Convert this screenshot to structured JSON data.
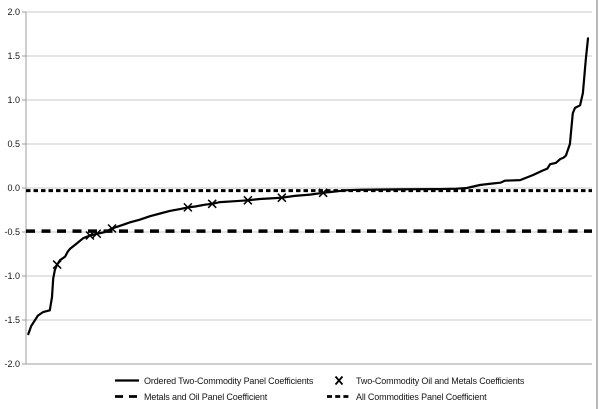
{
  "figure": {
    "background": "#ffffff",
    "right_border_color": "#b9b9b9"
  },
  "axis": {
    "ytick_labels": [
      "2.0",
      "1.5",
      "1.0",
      "0.5",
      "0.0",
      "-0.5",
      "-1.0",
      "-1.5",
      "-2.0"
    ],
    "grid_color": "#c9c9c9",
    "axis_color": "#9e9e9e",
    "label_color": "#151515"
  },
  "chart_data": {
    "type": "line",
    "title": "",
    "xlabel": "",
    "ylabel": "",
    "x_axis_note": "ordered rank of coefficients (no tick labels shown)",
    "ylim": [
      -2.0,
      2.0
    ],
    "yticks": [
      2.0,
      1.5,
      1.0,
      0.5,
      0.0,
      -0.5,
      -1.0,
      -1.5,
      -2.0
    ],
    "grid": "horizontal",
    "legend_position": "bottom",
    "series": [
      {
        "name": "Ordered Two-Commodity Panel Coefficients",
        "type": "line",
        "style": "solid",
        "color": "#000000",
        "points": [
          [
            0.004,
            -1.66
          ],
          [
            0.009,
            -1.57
          ],
          [
            0.014,
            -1.52
          ],
          [
            0.021,
            -1.45
          ],
          [
            0.03,
            -1.41
          ],
          [
            0.042,
            -1.39
          ],
          [
            0.046,
            -1.24
          ],
          [
            0.048,
            -1.03
          ],
          [
            0.051,
            -0.93
          ],
          [
            0.055,
            -0.87
          ],
          [
            0.06,
            -0.82
          ],
          [
            0.069,
            -0.78
          ],
          [
            0.074,
            -0.72
          ],
          [
            0.078,
            -0.69
          ],
          [
            0.09,
            -0.63
          ],
          [
            0.101,
            -0.57
          ],
          [
            0.113,
            -0.54
          ],
          [
            0.125,
            -0.52
          ],
          [
            0.14,
            -0.5
          ],
          [
            0.152,
            -0.46
          ],
          [
            0.166,
            -0.43
          ],
          [
            0.184,
            -0.39
          ],
          [
            0.201,
            -0.36
          ],
          [
            0.219,
            -0.32
          ],
          [
            0.237,
            -0.29
          ],
          [
            0.254,
            -0.26
          ],
          [
            0.272,
            -0.24
          ],
          [
            0.286,
            -0.22
          ],
          [
            0.299,
            -0.21
          ],
          [
            0.316,
            -0.19
          ],
          [
            0.329,
            -0.18
          ],
          [
            0.343,
            -0.16
          ],
          [
            0.369,
            -0.15
          ],
          [
            0.392,
            -0.14
          ],
          [
            0.413,
            -0.125
          ],
          [
            0.44,
            -0.115
          ],
          [
            0.452,
            -0.11
          ],
          [
            0.475,
            -0.09
          ],
          [
            0.502,
            -0.075
          ],
          [
            0.525,
            -0.055
          ],
          [
            0.546,
            -0.04
          ],
          [
            0.567,
            -0.025
          ],
          [
            0.59,
            -0.02
          ],
          [
            0.625,
            -0.018
          ],
          [
            0.661,
            -0.016
          ],
          [
            0.696,
            -0.014
          ],
          [
            0.731,
            -0.012
          ],
          [
            0.76,
            -0.008
          ],
          [
            0.779,
            0.0
          ],
          [
            0.802,
            0.034
          ],
          [
            0.822,
            0.05
          ],
          [
            0.838,
            0.06
          ],
          [
            0.846,
            0.083
          ],
          [
            0.873,
            0.09
          ],
          [
            0.896,
            0.148
          ],
          [
            0.912,
            0.195
          ],
          [
            0.921,
            0.22
          ],
          [
            0.926,
            0.27
          ],
          [
            0.936,
            0.285
          ],
          [
            0.944,
            0.33
          ],
          [
            0.95,
            0.345
          ],
          [
            0.954,
            0.37
          ],
          [
            0.961,
            0.5
          ],
          [
            0.966,
            0.85
          ],
          [
            0.97,
            0.91
          ],
          [
            0.979,
            0.94
          ],
          [
            0.984,
            1.08
          ],
          [
            0.989,
            1.46
          ],
          [
            0.993,
            1.7
          ]
        ]
      },
      {
        "name": "Two-Commodity Oil and Metals Coefficients",
        "type": "scatter",
        "marker": "x",
        "color": "#000000",
        "points": [
          [
            0.055,
            -0.87
          ],
          [
            0.113,
            -0.54
          ],
          [
            0.125,
            -0.52
          ],
          [
            0.152,
            -0.46
          ],
          [
            0.286,
            -0.22
          ],
          [
            0.329,
            -0.18
          ],
          [
            0.392,
            -0.14
          ],
          [
            0.452,
            -0.11
          ],
          [
            0.525,
            -0.055
          ]
        ]
      },
      {
        "name": "Metals and Oil Panel Coefficient",
        "type": "hline",
        "style": "long-dash",
        "color": "#000000",
        "value": -0.49
      },
      {
        "name": "All Commodities Panel Coefficient",
        "type": "hline",
        "style": "short-dash",
        "color": "#000000",
        "value": -0.03
      }
    ]
  },
  "legend": {
    "items": [
      {
        "label": "Ordered Two-Commodity Panel Coefficients",
        "swatch": "solid-line"
      },
      {
        "label": "Two-Commodity Oil and Metals Coefficients",
        "swatch": "x-marker"
      },
      {
        "label": "Metals and Oil Panel Coefficient",
        "swatch": "long-dash"
      },
      {
        "label": "All Commodities Panel Coefficient",
        "swatch": "short-dash"
      }
    ]
  }
}
